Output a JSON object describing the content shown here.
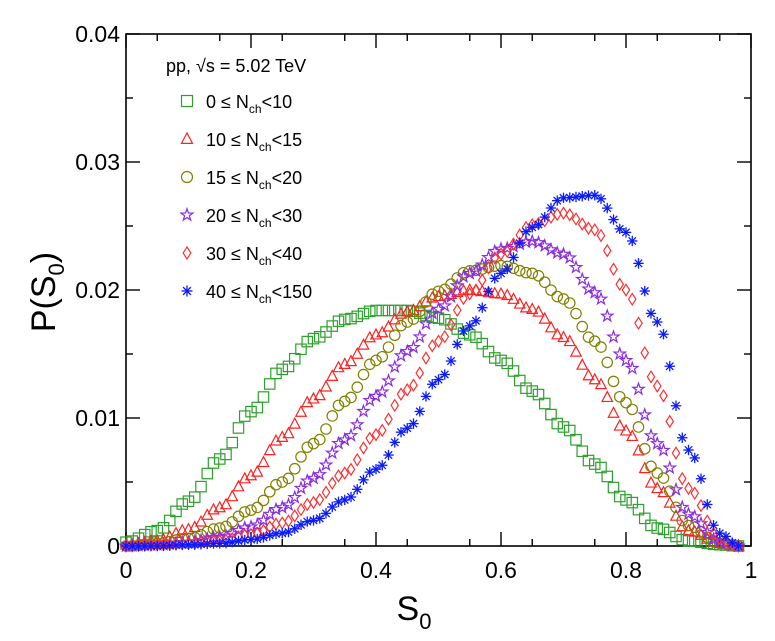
{
  "chart_data": {
    "type": "scatter",
    "title": "",
    "xlabel": "S",
    "xlabel_sub": "0",
    "ylabel_pre": "P(S",
    "ylabel_sub": "0",
    "ylabel_post": ")",
    "xlim": [
      0,
      1
    ],
    "ylim": [
      0,
      0.04
    ],
    "xticks": [
      "0",
      "0.2",
      "0.4",
      "0.6",
      "0.8",
      "1"
    ],
    "yticks": [
      "0",
      "0.01",
      "0.02",
      "0.03",
      "0.04"
    ],
    "legend_header": "pp, √s = 5.02 TeV",
    "legend_position": "top-left",
    "series": [
      {
        "name": "0 ≤ N_ch<10",
        "label_pre": "0 ≤ N",
        "label_sub": "ch",
        "label_post": "<10",
        "marker": "square",
        "color": "#2ca02c",
        "x": [
          0,
          0.05,
          0.1,
          0.15,
          0.2,
          0.25,
          0.3,
          0.35,
          0.4,
          0.45,
          0.5,
          0.55,
          0.6,
          0.65,
          0.7,
          0.75,
          0.8,
          0.85,
          0.9,
          0.95,
          0.98
        ],
        "y": [
          0.0003,
          0.0012,
          0.0035,
          0.0068,
          0.0105,
          0.0138,
          0.0162,
          0.0177,
          0.0184,
          0.0184,
          0.0178,
          0.0165,
          0.0145,
          0.0121,
          0.0093,
          0.0064,
          0.0036,
          0.0014,
          0.0004,
          0.0001,
          0
        ]
      },
      {
        "name": "10 ≤ N_ch<15",
        "label_pre": "10 ≤ N",
        "label_sub": "ch",
        "label_post": "<15",
        "marker": "triangle",
        "color": "#ff2020",
        "x": [
          0,
          0.05,
          0.1,
          0.15,
          0.2,
          0.25,
          0.3,
          0.35,
          0.4,
          0.45,
          0.5,
          0.55,
          0.6,
          0.65,
          0.7,
          0.75,
          0.8,
          0.85,
          0.9,
          0.95,
          0.98
        ],
        "y": [
          0.0001,
          0.0004,
          0.0013,
          0.003,
          0.0055,
          0.0085,
          0.0115,
          0.0142,
          0.0165,
          0.0183,
          0.0195,
          0.02,
          0.0197,
          0.0185,
          0.0163,
          0.013,
          0.009,
          0.0045,
          0.0012,
          0.0002,
          0
        ]
      },
      {
        "name": "15 ≤ N_ch<20",
        "label_pre": "15 ≤ N",
        "label_sub": "ch",
        "label_post": "<20",
        "marker": "circle",
        "color": "#808000",
        "x": [
          0,
          0.05,
          0.1,
          0.15,
          0.2,
          0.25,
          0.3,
          0.35,
          0.4,
          0.45,
          0.5,
          0.55,
          0.6,
          0.65,
          0.7,
          0.75,
          0.8,
          0.85,
          0.9,
          0.95,
          0.98
        ],
        "y": [
          0,
          0.0002,
          0.0006,
          0.0014,
          0.0028,
          0.005,
          0.008,
          0.0113,
          0.0145,
          0.0175,
          0.0199,
          0.0215,
          0.0219,
          0.0213,
          0.0193,
          0.016,
          0.0112,
          0.0057,
          0.0016,
          0.0002,
          0
        ]
      },
      {
        "name": "20 ≤ N_ch<30",
        "label_pre": "20 ≤ N",
        "label_sub": "ch",
        "label_post": "<30",
        "marker": "star",
        "color": "#8a2be2",
        "x": [
          0,
          0.05,
          0.1,
          0.15,
          0.2,
          0.25,
          0.3,
          0.35,
          0.4,
          0.45,
          0.5,
          0.55,
          0.6,
          0.65,
          0.7,
          0.75,
          0.8,
          0.85,
          0.9,
          0.95,
          0.98
        ],
        "y": [
          0,
          0.0001,
          0.0003,
          0.0007,
          0.0015,
          0.003,
          0.0053,
          0.0083,
          0.0117,
          0.0152,
          0.0185,
          0.0213,
          0.0232,
          0.0238,
          0.0228,
          0.0198,
          0.0145,
          0.008,
          0.0025,
          0.0003,
          0
        ]
      },
      {
        "name": "30 ≤ N_ch<40",
        "label_pre": "30 ≤ N",
        "label_sub": "ch",
        "label_post": "<40",
        "marker": "diamond",
        "color": "#ff3030",
        "x": [
          0,
          0.05,
          0.1,
          0.15,
          0.2,
          0.25,
          0.3,
          0.35,
          0.4,
          0.45,
          0.5,
          0.55,
          0.6,
          0.65,
          0.7,
          0.75,
          0.8,
          0.85,
          0.9,
          0.95,
          0.98
        ],
        "y": [
          0,
          0.0001,
          0.0002,
          0.0004,
          0.0009,
          0.0018,
          0.0034,
          0.0057,
          0.0087,
          0.0122,
          0.016,
          0.0197,
          0.0228,
          0.0251,
          0.026,
          0.0247,
          0.02,
          0.0125,
          0.0045,
          0.0006,
          0
        ]
      },
      {
        "name": "40 ≤ N_ch<150",
        "label_pre": "40 ≤ N",
        "label_sub": "ch",
        "label_post": "<150",
        "marker": "asterisk",
        "color": "#0a1aff",
        "x": [
          0,
          0.05,
          0.1,
          0.15,
          0.2,
          0.25,
          0.3,
          0.35,
          0.4,
          0.45,
          0.5,
          0.55,
          0.6,
          0.65,
          0.7,
          0.75,
          0.8,
          0.85,
          0.9,
          0.95,
          0.98
        ],
        "y": [
          0,
          0,
          0.0001,
          0.0002,
          0.0005,
          0.001,
          0.002,
          0.0036,
          0.006,
          0.0092,
          0.013,
          0.0172,
          0.0213,
          0.0249,
          0.0272,
          0.0274,
          0.0245,
          0.0175,
          0.0075,
          0.001,
          0
        ]
      }
    ]
  }
}
